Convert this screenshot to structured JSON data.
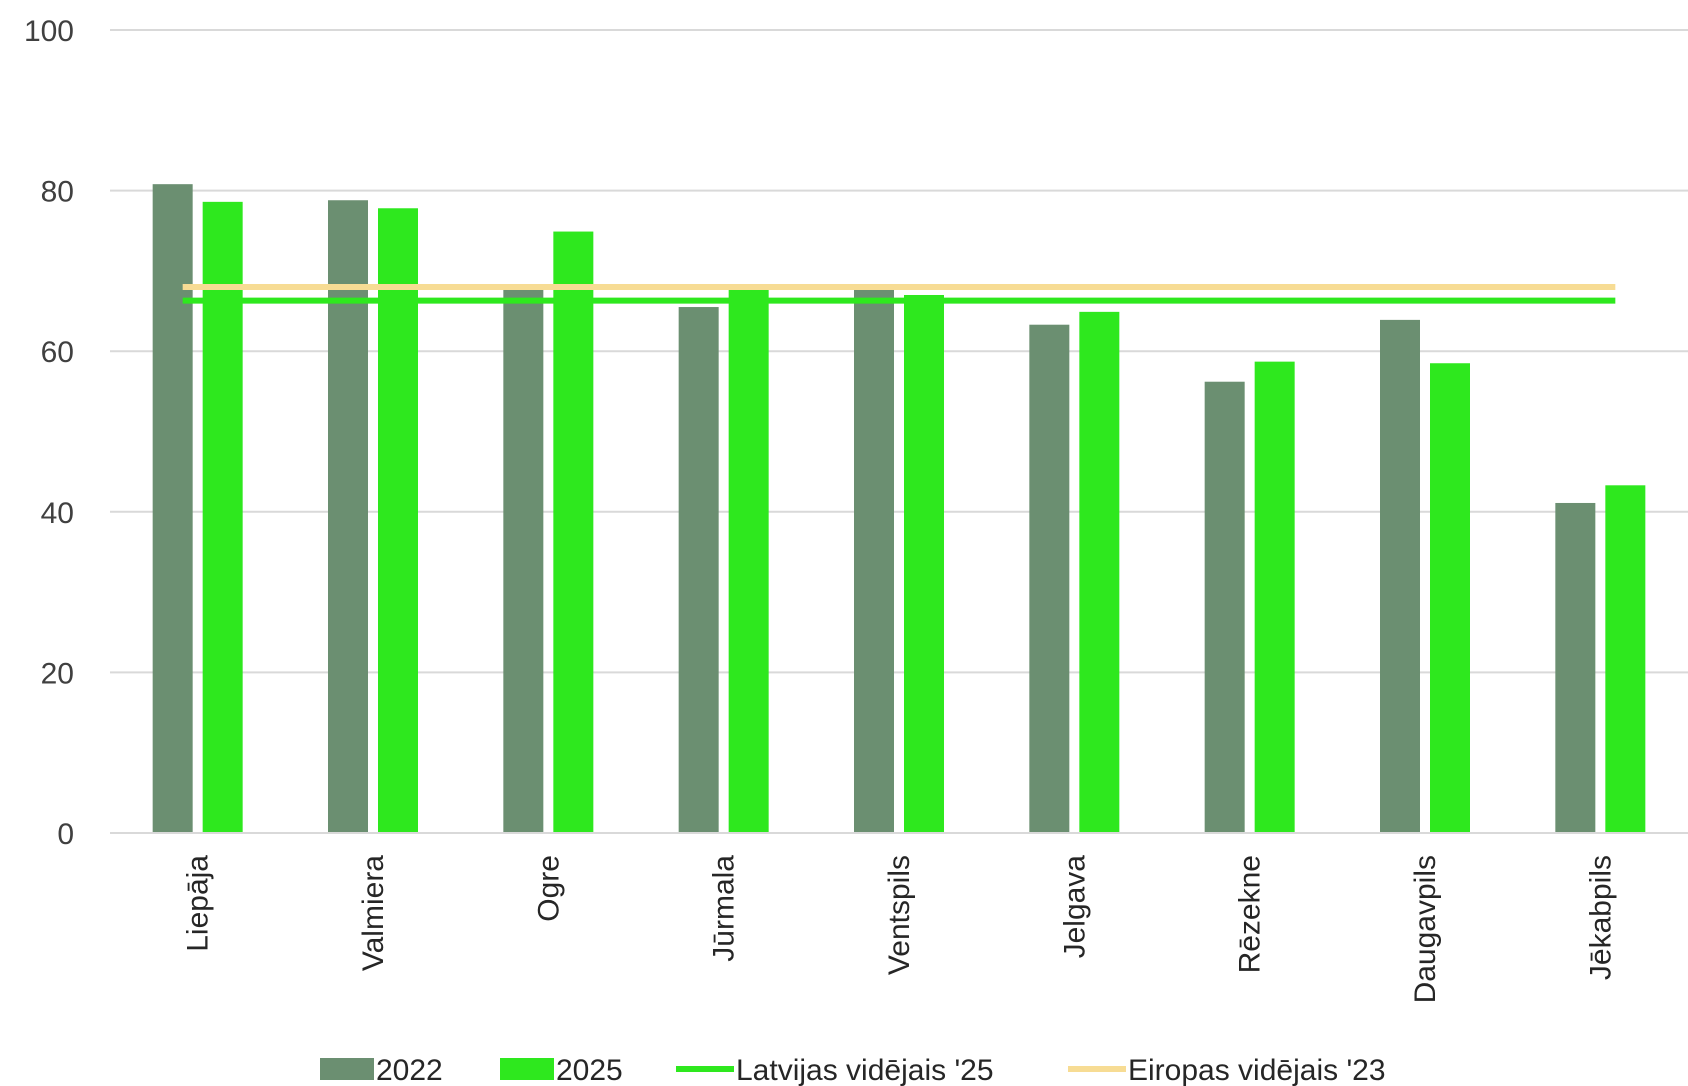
{
  "chart_data": {
    "type": "bar",
    "categories": [
      "Liepāja",
      "Valmiera",
      "Ogre",
      "Jūrmala",
      "Ventspils",
      "Jelgava",
      "Rēzekne",
      "Daugavpils",
      "Jēkabpils"
    ],
    "series": [
      {
        "name": "2022",
        "color": "#6b8f71",
        "values": [
          80.8,
          78.8,
          67.7,
          65.5,
          67.8,
          63.3,
          56.2,
          63.9,
          41.1
        ]
      },
      {
        "name": "2025",
        "color": "#2ee81e",
        "values": [
          78.6,
          77.8,
          74.9,
          67.7,
          67.0,
          64.9,
          58.7,
          58.5,
          43.3
        ]
      }
    ],
    "reference_lines": [
      {
        "name": "Latvijas vidējais '25",
        "color": "#2ee81e",
        "value": 66.3
      },
      {
        "name": "Eiropas vidējais '23",
        "color": "#f7dc94",
        "value": 68.0
      }
    ],
    "ylim": [
      0,
      100
    ],
    "yticks": [
      0,
      20,
      40,
      60,
      80,
      100
    ],
    "grid": true,
    "legend_position": "bottom"
  }
}
